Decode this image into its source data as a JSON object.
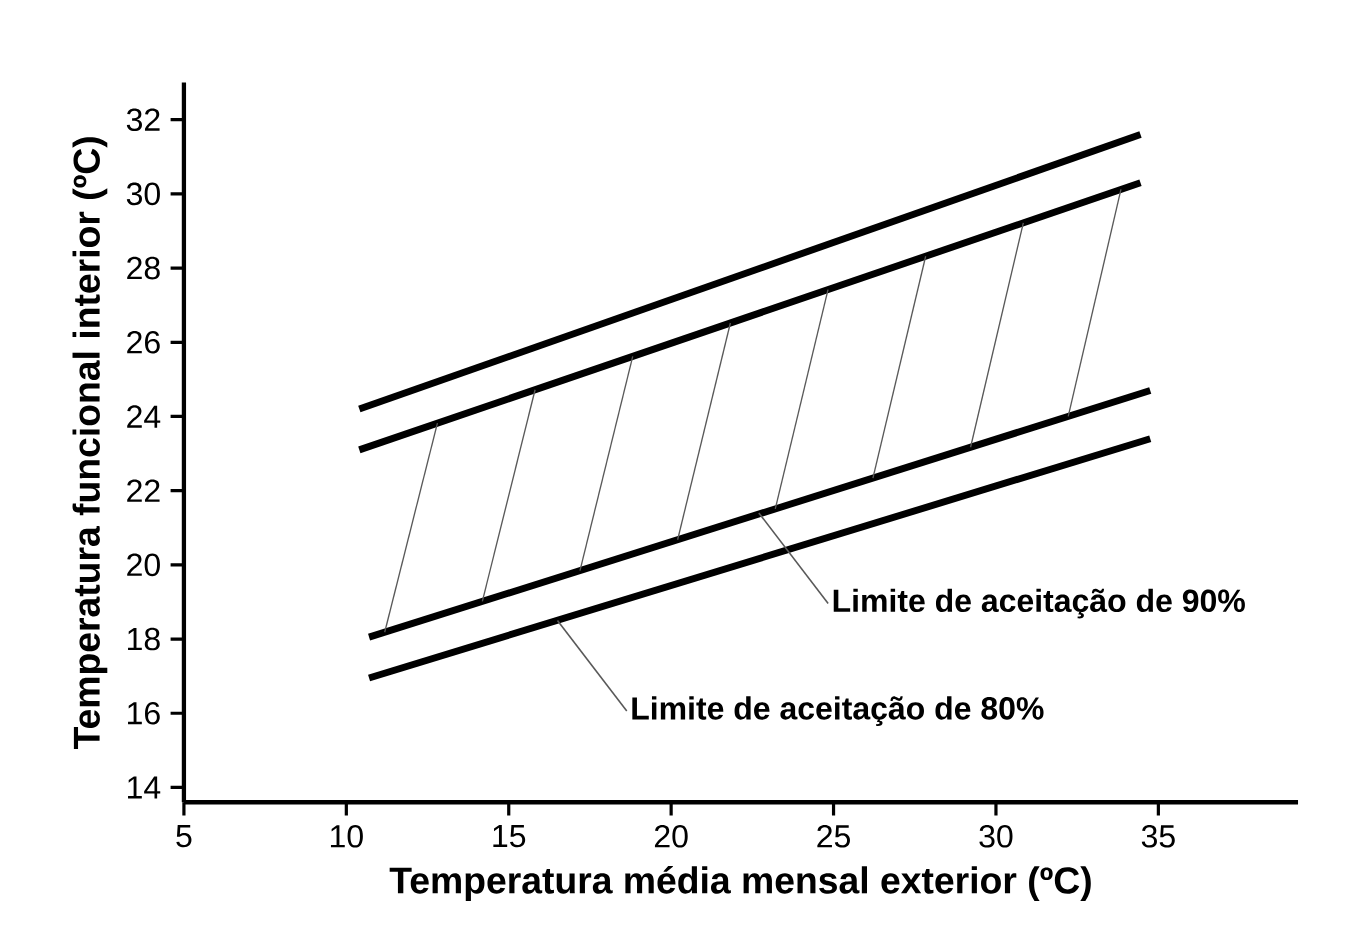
{
  "chart_data": {
    "type": "line",
    "xlabel": "Temperatura média mensal exterior (ºC)",
    "ylabel": "Temperatura funcional interior (ºC)",
    "xlim": [
      5,
      39.3
    ],
    "ylim": [
      13.6,
      33
    ],
    "xticks": [
      5,
      10,
      15,
      20,
      25,
      30,
      35
    ],
    "yticks": [
      14,
      16,
      18,
      20,
      22,
      24,
      26,
      28,
      30,
      32
    ],
    "grid": false,
    "marker": "none",
    "line_style": "solid",
    "series": [
      {
        "color": "#000000",
        "x": [
          10.4,
          34.45
        ],
        "values": [
          24.2,
          31.6
        ]
      },
      {
        "color": "#000000",
        "x": [
          10.4,
          34.45
        ],
        "values": [
          23.1,
          30.3
        ]
      },
      {
        "color": "#000000",
        "x": [
          10.7,
          34.75
        ],
        "values": [
          18.05,
          24.7
        ]
      },
      {
        "color": "#000000",
        "x": [
          10.7,
          34.75
        ],
        "values": [
          16.95,
          23.4
        ]
      }
    ],
    "annotations": [
      {
        "text": "Limite de aceitação de 90%",
        "x": 22.7,
        "y": 21.4
      },
      {
        "text": "Limite de aceitação de 80%",
        "x": 16.5,
        "y": 18.5
      }
    ]
  }
}
